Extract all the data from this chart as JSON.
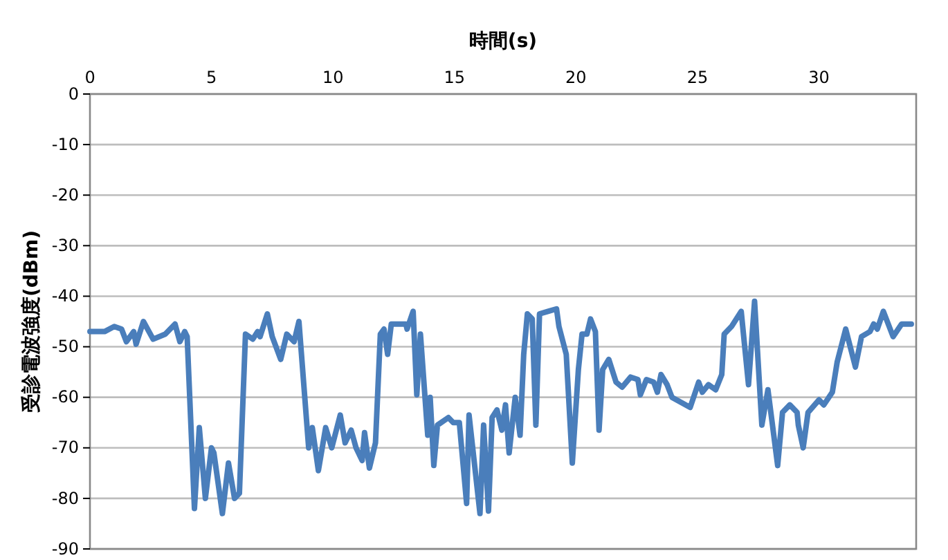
{
  "chart_data": {
    "type": "line",
    "xlabel": "時間(s)",
    "ylabel": "受診電波強度(dBm)",
    "xlim": [
      0,
      34
    ],
    "xticks": [
      0,
      5,
      10,
      15,
      20,
      25,
      30
    ],
    "ylim": [
      -90,
      0
    ],
    "yticks": [
      0,
      -10,
      -20,
      -30,
      -40,
      -50,
      -60,
      -70,
      -80,
      -90
    ],
    "grid": "y",
    "marker": "none",
    "line_style": "solid",
    "series": [
      {
        "color": "#4a7ebb",
        "x": [
          0,
          0.6,
          1.0,
          1.3,
          1.5,
          1.8,
          1.9,
          2.2,
          2.6,
          3.1,
          3.5,
          3.7,
          3.9,
          4.0,
          4.3,
          4.5,
          4.75,
          5.0,
          5.1,
          5.45,
          5.7,
          5.95,
          6.15,
          6.4,
          6.7,
          6.9,
          7.0,
          7.3,
          7.5,
          7.85,
          8.1,
          8.4,
          8.6,
          9.0,
          9.15,
          9.4,
          9.7,
          9.95,
          10.3,
          10.5,
          10.75,
          10.95,
          11.2,
          11.3,
          11.5,
          11.75,
          11.95,
          12.1,
          12.25,
          12.4,
          12.7,
          13.0,
          13.05,
          13.3,
          13.45,
          13.6,
          13.9,
          14.0,
          14.15,
          14.3,
          14.75,
          14.95,
          15.2,
          15.5,
          15.6,
          16.05,
          16.2,
          16.4,
          16.55,
          16.75,
          16.95,
          17.1,
          17.25,
          17.5,
          17.7,
          17.85,
          18.0,
          18.2,
          18.35,
          18.5,
          18.85,
          19.2,
          19.3,
          19.6,
          19.85,
          20.1,
          20.25,
          20.45,
          20.6,
          20.8,
          20.95,
          21.1,
          21.35,
          21.65,
          21.9,
          22.25,
          22.55,
          22.65,
          22.9,
          23.2,
          23.35,
          23.5,
          23.75,
          23.95,
          24.7,
          25.05,
          25.2,
          25.45,
          25.75,
          26.0,
          26.1,
          26.4,
          26.8,
          27.1,
          27.35,
          27.65,
          27.9,
          28.3,
          28.5,
          28.8,
          29.1,
          29.15,
          29.35,
          29.55,
          30.0,
          30.2,
          30.55,
          30.75,
          31.1,
          31.5,
          31.75,
          32.1,
          32.25,
          32.4,
          32.65,
          33.05,
          33.4,
          33.8
        ],
        "values": [
          -47,
          -47,
          -46,
          -46.5,
          -49,
          -47,
          -49.5,
          -45,
          -48.5,
          -47.5,
          -45.5,
          -49,
          -47,
          -48,
          -82,
          -66,
          -80,
          -70,
          -71,
          -83,
          -73,
          -80,
          -79,
          -47.5,
          -48.5,
          -47,
          -48,
          -43.5,
          -48,
          -52.5,
          -47.5,
          -49,
          -45,
          -70,
          -66,
          -74.5,
          -66,
          -70,
          -63.5,
          -69,
          -66.5,
          -70,
          -72.5,
          -67,
          -74,
          -69,
          -47.5,
          -46.5,
          -51.5,
          -45.5,
          -45.5,
          -45.5,
          -46.5,
          -43,
          -59.5,
          -47.5,
          -67.5,
          -60,
          -73.5,
          -65.5,
          -64,
          -65,
          -65,
          -81,
          -63.5,
          -83,
          -65.5,
          -82.5,
          -64,
          -62.5,
          -66.5,
          -61.5,
          -71,
          -60,
          -67.5,
          -51.5,
          -43.5,
          -44.5,
          -65.5,
          -43.5,
          -43,
          -42.5,
          -46,
          -51.5,
          -73,
          -54.5,
          -47.5,
          -47.5,
          -44.5,
          -47,
          -66.5,
          -54.5,
          -52.5,
          -57,
          -58,
          -56,
          -56.5,
          -59.5,
          -56.5,
          -57,
          -59,
          -55.5,
          -57.5,
          -60,
          -62,
          -57,
          -59,
          -57.5,
          -58.5,
          -55.5,
          -47.5,
          -46,
          -43,
          -57.5,
          -41,
          -65.5,
          -58.5,
          -73.5,
          -63,
          -61.5,
          -63,
          -65.5,
          -70,
          -63,
          -60.5,
          -61.5,
          -59,
          -53,
          -46.5,
          -54,
          -48,
          -47,
          -45.5,
          -46.5,
          -43,
          -48,
          -45.5,
          -45.5
        ]
      }
    ]
  }
}
